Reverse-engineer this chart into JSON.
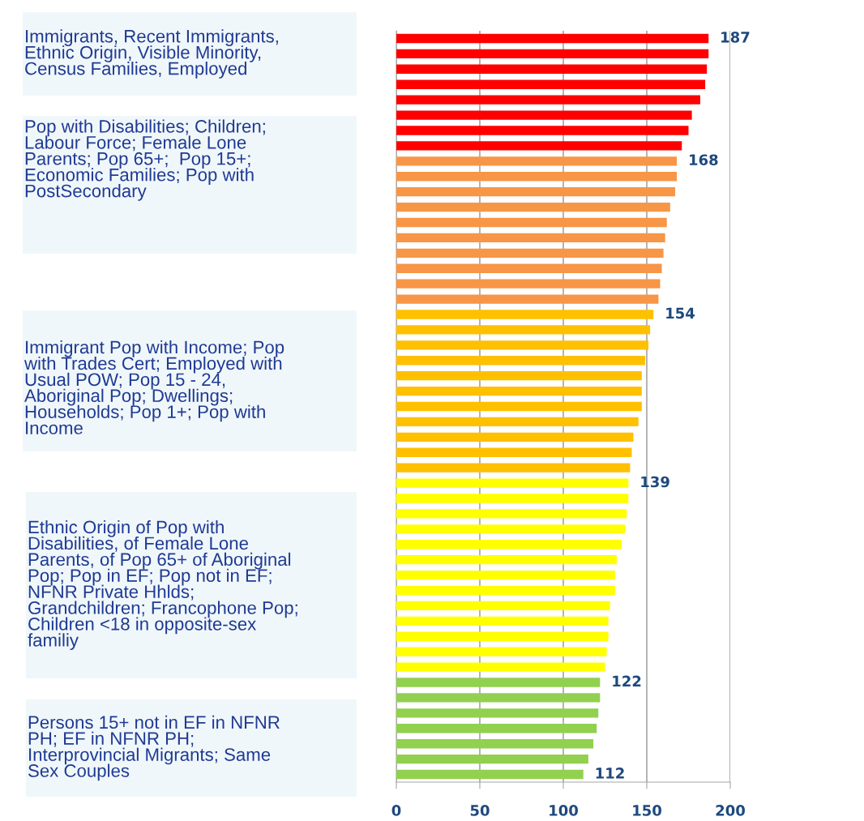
{
  "chart_data": {
    "type": "bar",
    "orientation": "horizontal",
    "categories": [
      null,
      null,
      null,
      null,
      null,
      null,
      null,
      null,
      null,
      null,
      null,
      null,
      null,
      null,
      null,
      null,
      null,
      null,
      null,
      null,
      null,
      null,
      null,
      null,
      null,
      null,
      null,
      null,
      null,
      null,
      null,
      null,
      null,
      null,
      null,
      null,
      null,
      null,
      null,
      null,
      null,
      null,
      null,
      null,
      null,
      null,
      null,
      null,
      null
    ],
    "values": [
      187,
      187,
      186,
      185,
      182,
      177,
      175,
      171,
      168,
      168,
      167,
      164,
      162,
      161,
      160,
      159,
      158,
      157,
      154,
      152,
      151,
      149,
      147,
      147,
      147,
      145,
      142,
      141,
      140,
      139,
      139,
      138,
      137,
      135,
      132,
      131,
      131,
      128,
      127,
      127,
      126,
      125,
      122,
      122,
      121,
      120,
      118,
      115,
      112
    ],
    "colors": [
      "#ff0000",
      "#ff0000",
      "#ff0000",
      "#ff0000",
      "#ff0000",
      "#ff0000",
      "#ff0000",
      "#ff0000",
      "#f79646",
      "#f79646",
      "#f79646",
      "#f79646",
      "#f79646",
      "#f79646",
      "#f79646",
      "#f79646",
      "#f79646",
      "#f79646",
      "#ffc000",
      "#ffc000",
      "#ffc000",
      "#ffc000",
      "#ffc000",
      "#ffc000",
      "#ffc000",
      "#ffc000",
      "#ffc000",
      "#ffc000",
      "#ffc000",
      "#ffff00",
      "#ffff00",
      "#ffff00",
      "#ffff00",
      "#ffff00",
      "#ffff00",
      "#ffff00",
      "#ffff00",
      "#ffff00",
      "#ffff00",
      "#ffff00",
      "#ffff00",
      "#ffff00",
      "#92d050",
      "#92d050",
      "#92d050",
      "#92d050",
      "#92d050",
      "#92d050",
      "#92d050"
    ],
    "value_labels": [
      "187",
      null,
      null,
      null,
      null,
      null,
      null,
      null,
      "168",
      null,
      null,
      null,
      null,
      null,
      null,
      null,
      null,
      null,
      "154",
      null,
      null,
      null,
      null,
      null,
      null,
      null,
      null,
      null,
      null,
      "139",
      null,
      null,
      null,
      null,
      null,
      null,
      null,
      null,
      null,
      null,
      null,
      null,
      "122",
      null,
      null,
      null,
      null,
      null,
      "112"
    ],
    "xlim": [
      0,
      200
    ],
    "xticks": [
      0,
      50,
      100,
      150,
      200
    ],
    "grid": "x",
    "annotations": [
      "Immigrants, Recent Immigrants,\nEthnic Origin, Visible Minority,\nCensus Families, Employed",
      "Pop with Disabilities; Children;\nLabour Force; Female Lone\nParents; Pop 65+;  Pop 15+;\nEconomic Families; Pop with\nPostSecondary",
      "Immigrant Pop with Income; Pop\nwith Trades Cert; Employed with\nUsual POW; Pop 15 - 24,\nAboriginal Pop; Dwellings;\nHouseholds; Pop 1+; Pop with\nIncome",
      "Ethnic Origin of Pop with\nDisabilities, of Female Lone\nParents, of Pop 65+ of Aboriginal\nPop; Pop in EF; Pop not in EF;\nNFNR Private Hhlds;\nGrandchildren; Francophone Pop;\nChildren <18 in opposite-sex\nfamiliy",
      "Persons 15+ not in EF in NFNR\nPH; EF in NFNR PH;\nInterprovincial Migrants; Same\nSex Couples"
    ]
  }
}
